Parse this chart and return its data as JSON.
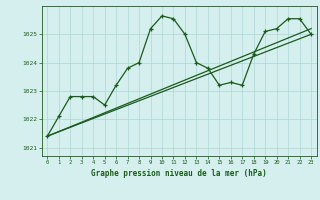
{
  "title": "Graphe pression niveau de la mer (hPa)",
  "background_color": "#d5efef",
  "grid_color": "#aed4d4",
  "line_color": "#1a5c1a",
  "xlim": [
    -0.5,
    23.5
  ],
  "ylim": [
    1020.7,
    1026.0
  ],
  "yticks": [
    1021,
    1022,
    1023,
    1024,
    1025
  ],
  "xticks": [
    0,
    1,
    2,
    3,
    4,
    5,
    6,
    7,
    8,
    9,
    10,
    11,
    12,
    13,
    14,
    15,
    16,
    17,
    18,
    19,
    20,
    21,
    22,
    23
  ],
  "series1_x": [
    0,
    1,
    2,
    3,
    4,
    5,
    6,
    7,
    8,
    9,
    10,
    11,
    12,
    13,
    14,
    15,
    16,
    17,
    18,
    19,
    20,
    21,
    22,
    23
  ],
  "series1_y": [
    1021.4,
    1022.1,
    1022.8,
    1022.8,
    1022.8,
    1022.5,
    1023.2,
    1023.8,
    1024.0,
    1025.2,
    1025.65,
    1025.55,
    1025.0,
    1024.0,
    1023.8,
    1023.2,
    1023.3,
    1023.2,
    1024.3,
    1025.1,
    1025.2,
    1025.55,
    1025.55,
    1025.0
  ],
  "series2_x": [
    0,
    23
  ],
  "series2_y": [
    1021.4,
    1025.2
  ],
  "series3_x": [
    0,
    23
  ],
  "series3_y": [
    1021.4,
    1025.0
  ]
}
